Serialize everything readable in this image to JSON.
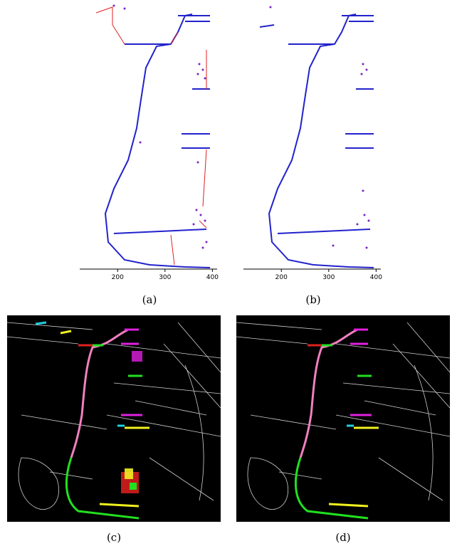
{
  "panels": [
    {
      "id": "a",
      "caption": "(a)"
    },
    {
      "id": "b",
      "caption": "(b)"
    },
    {
      "id": "c",
      "caption": "(c)"
    },
    {
      "id": "d",
      "caption": "(d)"
    }
  ],
  "chart_data": [
    {
      "type": "scatter",
      "panel": "a",
      "xticks": [
        200,
        300,
        400
      ],
      "xlim": [
        120,
        410
      ],
      "series": [
        {
          "values": "bell contour point trace (blue) with red linking segments"
        }
      ]
    },
    {
      "type": "scatter",
      "panel": "b",
      "xticks": [
        200,
        300,
        400
      ],
      "xlim": [
        120,
        410
      ],
      "series": [
        {
          "values": "bell contour point trace (blue), no links"
        }
      ]
    }
  ],
  "colors": {
    "trace": "#2222cc",
    "dots": "#7a22c8",
    "links": "#e02020",
    "pink": "#f080c0",
    "green": "#20e020",
    "magenta": "#e020e0",
    "yellow": "#f0f020",
    "red": "#e02020",
    "cyan": "#20d0e0"
  }
}
